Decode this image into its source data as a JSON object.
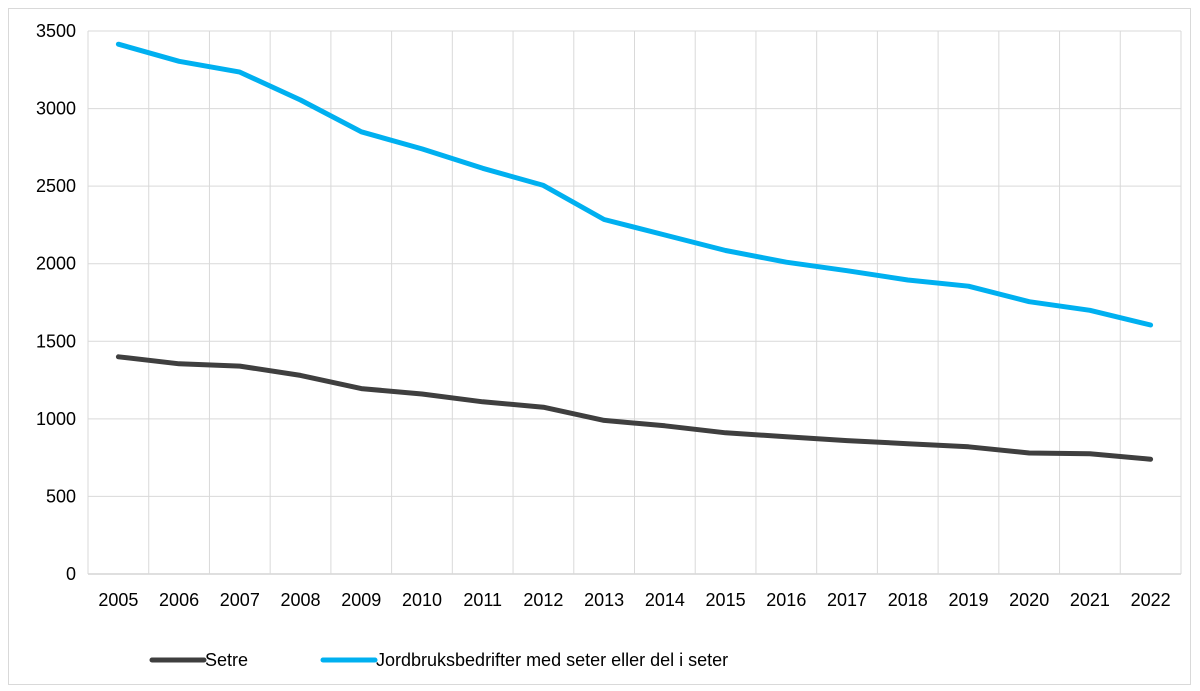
{
  "chart_data": {
    "type": "line",
    "title": "",
    "xlabel": "",
    "ylabel": "",
    "x": [
      "2005",
      "2006",
      "2007",
      "2008",
      "2009",
      "2010",
      "2011",
      "2012",
      "2013",
      "2014",
      "2015",
      "2016",
      "2017",
      "2018",
      "2019",
      "2020",
      "2021",
      "2022"
    ],
    "ylim": [
      0,
      3500
    ],
    "yticks": [
      "0",
      "500",
      "1000",
      "1500",
      "2000",
      "2500",
      "3000",
      "3500"
    ],
    "grid": true,
    "legend_position": "bottom",
    "series": [
      {
        "name": "Setre",
        "color": "#3f3f3f",
        "values": [
          1400,
          1355,
          1340,
          1280,
          1195,
          1160,
          1110,
          1075,
          990,
          955,
          910,
          885,
          860,
          840,
          820,
          780,
          775,
          740
        ]
      },
      {
        "name": "Jordbruksbedrifter med seter eller del i seter",
        "color": "#00b0f0",
        "values": [
          3415,
          3305,
          3235,
          3055,
          2850,
          2740,
          2615,
          2505,
          2285,
          2185,
          2085,
          2010,
          1955,
          1895,
          1855,
          1755,
          1700,
          1605
        ]
      }
    ]
  }
}
